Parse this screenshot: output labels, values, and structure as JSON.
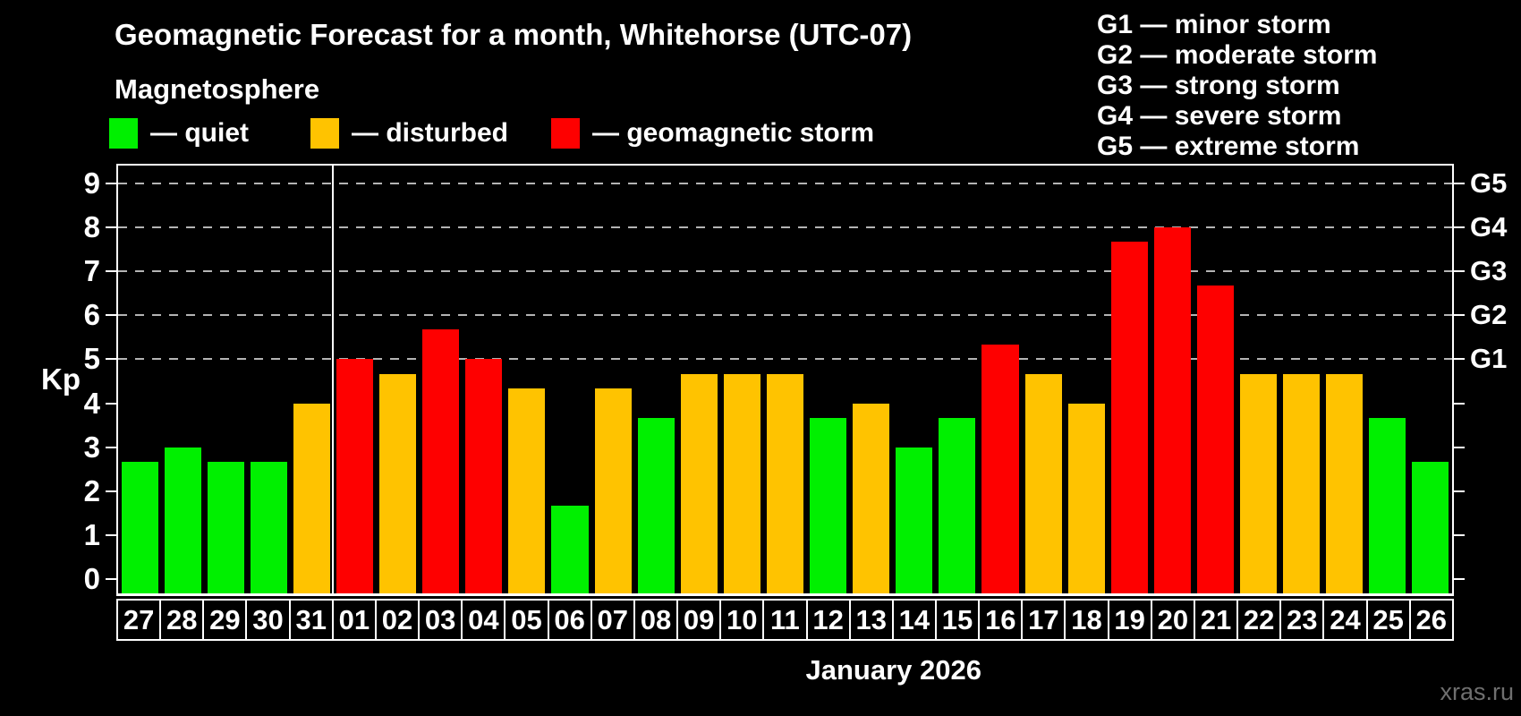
{
  "header": {
    "title": "Geomagnetic Forecast for a month, Whitehorse (UTC-07)",
    "subtitle": "Magnetosphere",
    "legend": [
      {
        "key": "quiet",
        "label": "— quiet",
        "color": "#00f000"
      },
      {
        "key": "disturbed",
        "label": "— disturbed",
        "color": "#ffc300"
      },
      {
        "key": "storm",
        "label": "— geomagnetic storm",
        "color": "#fe0000"
      }
    ],
    "g_legend": [
      "G1 — minor storm",
      "G2 — moderate storm",
      "G3 — strong storm",
      "G4 — severe storm",
      "G5 — extreme storm"
    ]
  },
  "axis": {
    "ylabel": "Kp",
    "yticks": [
      0,
      1,
      2,
      3,
      4,
      5,
      6,
      7,
      8,
      9
    ],
    "right_scale": [
      {
        "label": "G1",
        "kp": 5
      },
      {
        "label": "G2",
        "kp": 6
      },
      {
        "label": "G3",
        "kp": 7
      },
      {
        "label": "G4",
        "kp": 8
      },
      {
        "label": "G5",
        "kp": 9
      }
    ],
    "xlabel": "January 2026"
  },
  "watermark": "xras.ru",
  "colors": {
    "quiet": "#00f000",
    "disturbed": "#ffc300",
    "storm": "#fe0000",
    "grid": "#b4b4b4",
    "axis": "#ffffff",
    "background": "#000000"
  },
  "chart_data": {
    "type": "bar",
    "title": "Geomagnetic Forecast for a month, Whitehorse (UTC-07)",
    "ylabel": "Kp",
    "xlabel": "January 2026",
    "ylim": [
      0,
      9
    ],
    "grid_levels": [
      5,
      6,
      7,
      8,
      9
    ],
    "legend_position": "top",
    "separator_before_index": 5,
    "categories": [
      "27",
      "28",
      "29",
      "30",
      "31",
      "01",
      "02",
      "03",
      "04",
      "05",
      "06",
      "07",
      "08",
      "09",
      "10",
      "11",
      "12",
      "13",
      "14",
      "15",
      "16",
      "17",
      "18",
      "19",
      "20",
      "21",
      "22",
      "23",
      "24",
      "25",
      "26"
    ],
    "values": [
      2.67,
      3.0,
      2.67,
      2.67,
      4.0,
      5.0,
      4.67,
      5.67,
      5.0,
      4.33,
      1.67,
      4.33,
      3.67,
      4.67,
      4.67,
      4.67,
      3.67,
      4.0,
      3.0,
      3.67,
      5.33,
      4.67,
      4.0,
      7.67,
      8.0,
      6.67,
      4.67,
      4.67,
      4.67,
      3.67,
      2.67
    ],
    "statuses": [
      "quiet",
      "quiet",
      "quiet",
      "quiet",
      "disturbed",
      "storm",
      "disturbed",
      "storm",
      "storm",
      "disturbed",
      "quiet",
      "disturbed",
      "quiet",
      "disturbed",
      "disturbed",
      "disturbed",
      "quiet",
      "disturbed",
      "quiet",
      "quiet",
      "storm",
      "disturbed",
      "disturbed",
      "storm",
      "storm",
      "storm",
      "disturbed",
      "disturbed",
      "disturbed",
      "quiet",
      "quiet"
    ]
  }
}
